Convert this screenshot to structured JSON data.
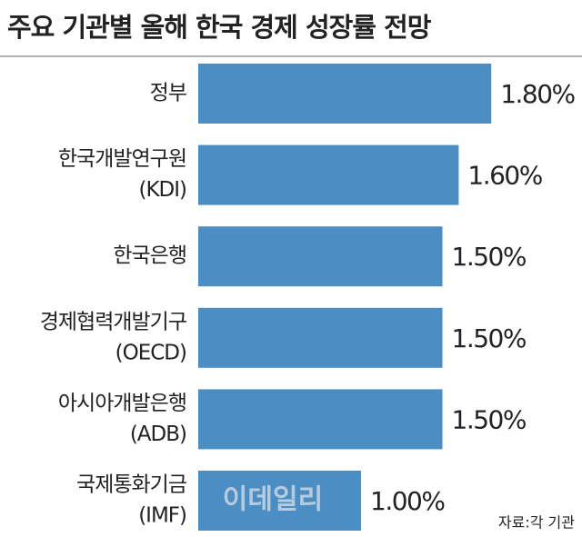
{
  "chart_data": {
    "type": "bar",
    "orientation": "horizontal",
    "title": "주요 기관별 올해 한국 경제 성장률 전망",
    "categories": [
      [
        "정부"
      ],
      [
        "한국개발연구원",
        "(KDI)"
      ],
      [
        "한국은행"
      ],
      [
        "경제협력개발기구",
        "(OECD)"
      ],
      [
        "아시아개발은행",
        "(ADB)"
      ],
      [
        "국제통화기금",
        "(IMF)"
      ]
    ],
    "values": [
      1.8,
      1.6,
      1.5,
      1.5,
      1.5,
      1.0
    ],
    "value_labels": [
      "1.80%",
      "1.60%",
      "1.50%",
      "1.50%",
      "1.50%",
      "1.00%"
    ],
    "color": "#4a8ec3",
    "source": "자료:각 기관",
    "watermark": "이데일리"
  }
}
